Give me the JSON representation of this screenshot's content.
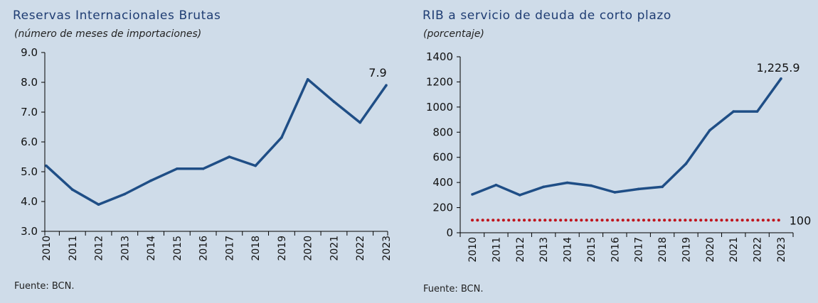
{
  "chart_data": [
    {
      "type": "line",
      "title": "Reservas Internacionales Brutas",
      "subtitle": "(número de meses de importaciones)",
      "source": "Fuente: BCN.",
      "categories": [
        "2010",
        "2011",
        "2012",
        "2013",
        "2014",
        "2015",
        "2016",
        "2017",
        "2018",
        "2019",
        "2020",
        "2021",
        "2022",
        "2023"
      ],
      "series": [
        {
          "values": [
            5.2,
            4.4,
            3.9,
            4.25,
            4.7,
            5.1,
            5.1,
            5.5,
            5.2,
            6.15,
            8.1,
            7.35,
            6.65,
            7.9
          ]
        }
      ],
      "ylim": [
        3.0,
        9.0
      ],
      "yticks": [
        "3.0",
        "4.0",
        "5.0",
        "6.0",
        "7.0",
        "8.0",
        "9.0"
      ],
      "annotation": "7.9",
      "colors": {
        "line": "#1f4e86"
      }
    },
    {
      "type": "line",
      "title": "RIB a servicio de deuda de corto plazo",
      "subtitle": "(porcentaje)",
      "source": "Fuente: BCN.",
      "categories": [
        "2010",
        "2011",
        "2012",
        "2013",
        "2014",
        "2015",
        "2016",
        "2017",
        "2018",
        "2019",
        "2020",
        "2021",
        "2022",
        "2023"
      ],
      "series": [
        {
          "values": [
            305,
            380,
            300,
            365,
            398,
            375,
            322,
            348,
            365,
            550,
            815,
            965,
            965,
            1225.9
          ]
        },
        {
          "values": [
            100,
            100,
            100,
            100,
            100,
            100,
            100,
            100,
            100,
            100,
            100,
            100,
            100,
            100
          ],
          "style": "dotted"
        }
      ],
      "ylim": [
        0,
        1400
      ],
      "yticks": [
        "0",
        "200",
        "400",
        "600",
        "800",
        "1000",
        "1200",
        "1400"
      ],
      "annotations": [
        "1,225.9",
        "100"
      ],
      "colors": {
        "line": "#1f4e86",
        "reference": "#c0141c"
      }
    }
  ]
}
